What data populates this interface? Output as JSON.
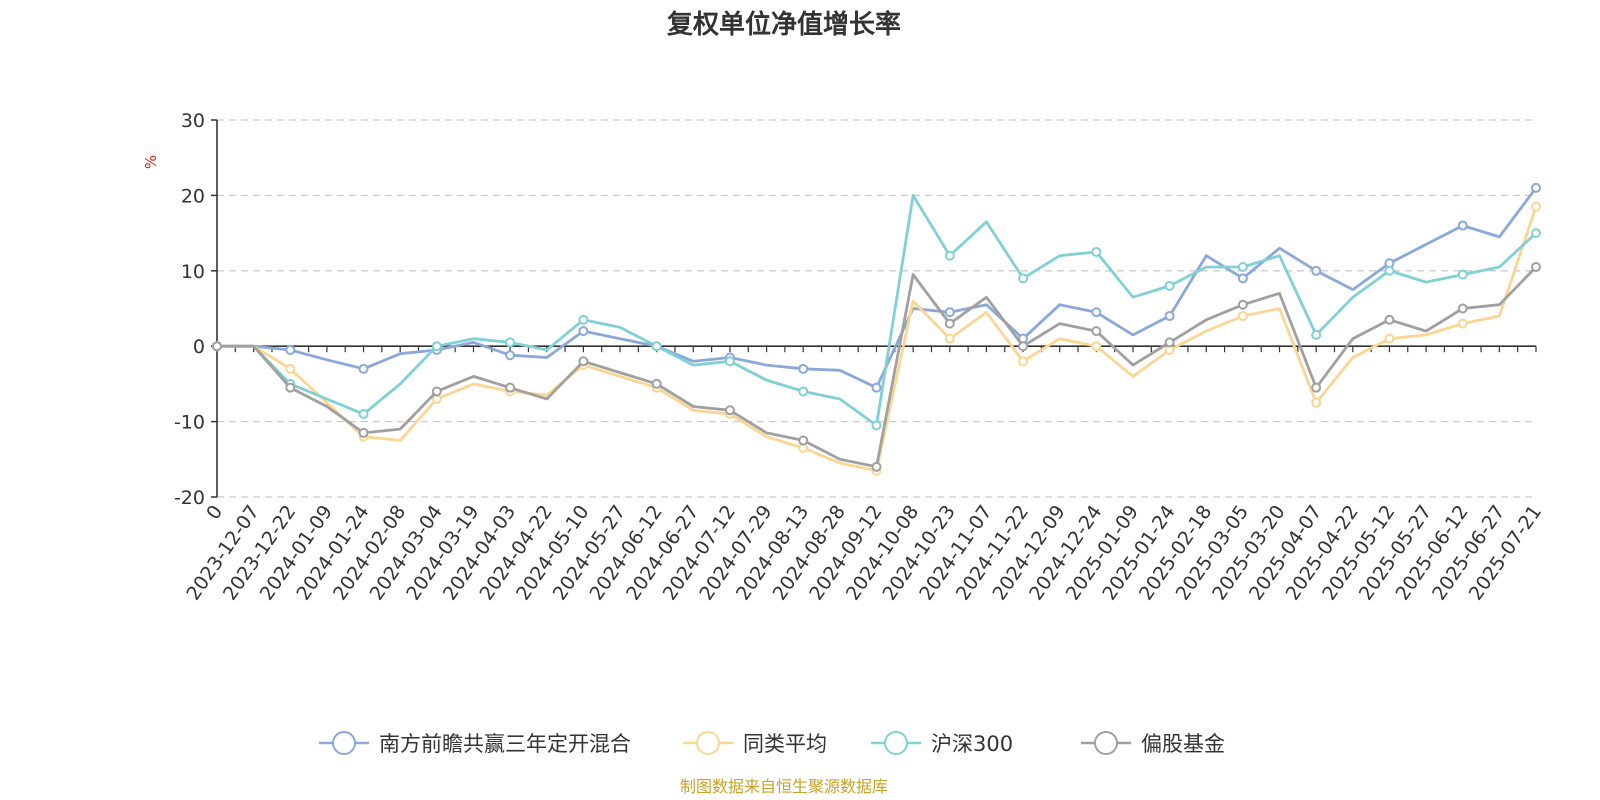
{
  "chart_data": {
    "type": "line",
    "title": "复权单位净值增长率",
    "ylabel": "%",
    "xlabel": "",
    "ylim": [
      -20,
      30
    ],
    "yticks": [
      30,
      20,
      10,
      0,
      -10,
      -20
    ],
    "grid": true,
    "legend_position": "bottom",
    "x_start_label": "0",
    "x": [
      "2023-12-07",
      "2023-12-22",
      "2024-01-09",
      "2024-01-24",
      "2024-02-08",
      "2024-03-04",
      "2024-03-19",
      "2024-04-03",
      "2024-04-22",
      "2024-05-10",
      "2024-05-27",
      "2024-06-12",
      "2024-06-27",
      "2024-07-12",
      "2024-07-29",
      "2024-08-13",
      "2024-08-28",
      "2024-09-12",
      "2024-10-08",
      "2024-10-23",
      "2024-11-07",
      "2024-11-22",
      "2024-12-09",
      "2024-12-24",
      "2025-01-09",
      "2025-01-24",
      "2025-02-18",
      "2025-03-05",
      "2025-03-20",
      "2025-04-07",
      "2025-04-22",
      "2025-05-12",
      "2025-05-27",
      "2025-06-12",
      "2025-06-27",
      "2025-07-21"
    ],
    "series": [
      {
        "name": "南方前瞻共赢三年定开混合",
        "color": "#8aa8d8",
        "values": [
          0.0,
          -0.5,
          -1.8,
          -3.0,
          -1.0,
          -0.5,
          0.5,
          -1.2,
          -1.5,
          2.0,
          1.0,
          0.0,
          -2.0,
          -1.5,
          -2.5,
          -3.0,
          -3.2,
          -5.5,
          5.0,
          4.5,
          5.5,
          1.0,
          5.5,
          4.5,
          1.5,
          4.0,
          12.0,
          9.0,
          13.0,
          10.0,
          7.5,
          11.0,
          13.5,
          16.0,
          14.5,
          21.0
        ]
      },
      {
        "name": "同类平均",
        "color": "#fcd592",
        "values": [
          0.0,
          -3.0,
          -7.5,
          -12.0,
          -12.5,
          -7.0,
          -5.0,
          -6.0,
          -6.5,
          -2.5,
          -4.0,
          -5.5,
          -8.5,
          -9.0,
          -12.0,
          -13.5,
          -15.5,
          -16.5,
          6.0,
          1.0,
          4.5,
          -2.0,
          1.0,
          0.0,
          -4.0,
          -0.5,
          2.0,
          4.0,
          5.0,
          -7.5,
          -1.5,
          1.0,
          1.5,
          3.0,
          4.0,
          18.5
        ]
      },
      {
        "name": "沪深300",
        "color": "#7fd1d6",
        "values": [
          0.0,
          -5.0,
          -7.0,
          -9.0,
          -5.0,
          0.0,
          1.0,
          0.5,
          -0.5,
          3.5,
          2.5,
          0.0,
          -2.5,
          -2.0,
          -4.5,
          -6.0,
          -7.0,
          -10.5,
          20.0,
          12.0,
          16.5,
          9.0,
          12.0,
          12.5,
          6.5,
          8.0,
          10.5,
          10.5,
          12.0,
          1.5,
          6.5,
          10.0,
          8.5,
          9.5,
          10.5,
          15.0
        ]
      },
      {
        "name": "偏股基金",
        "color": "#a0a0a0",
        "values": [
          0.0,
          -5.5,
          -8.0,
          -11.5,
          -11.0,
          -6.0,
          -4.0,
          -5.5,
          -7.0,
          -2.0,
          -3.5,
          -5.0,
          -8.0,
          -8.5,
          -11.5,
          -12.5,
          -15.0,
          -16.0,
          9.5,
          3.0,
          6.5,
          0.0,
          3.0,
          2.0,
          -2.5,
          0.5,
          3.5,
          5.5,
          7.0,
          -5.5,
          1.0,
          3.5,
          2.0,
          5.0,
          5.5,
          10.5
        ]
      }
    ]
  },
  "source_note": "制图数据来自恒生聚源数据库"
}
